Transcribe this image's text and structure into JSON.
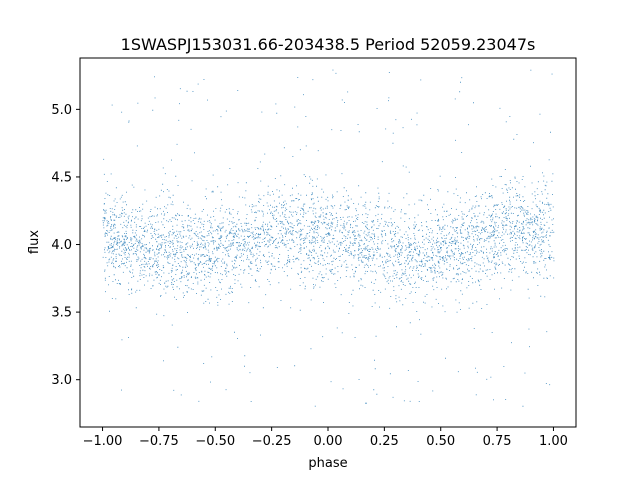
{
  "chart_data": {
    "type": "scatter",
    "title": "1SWASPJ153031.66-203438.5 Period 52059.23047s",
    "xlabel": "phase",
    "ylabel": "flux",
    "xlim": [
      -1.1,
      1.1
    ],
    "ylim": [
      2.65,
      5.38
    ],
    "xticks": [
      -1.0,
      -0.75,
      -0.5,
      -0.25,
      0.0,
      0.25,
      0.5,
      0.75,
      1.0
    ],
    "xtick_labels": [
      "−1.00",
      "−0.75",
      "−0.50",
      "−0.25",
      "0.00",
      "0.25",
      "0.50",
      "0.75",
      "1.00"
    ],
    "yticks": [
      3.0,
      3.5,
      4.0,
      4.5,
      5.0
    ],
    "ytick_labels": [
      "3.0",
      "3.5",
      "4.0",
      "4.5",
      "5.0"
    ],
    "grid": false,
    "marker_color": "#1f77b4",
    "series": [
      {
        "name": "",
        "x_range": [
          -1.0,
          1.0
        ],
        "flux_mean_profile": [
          {
            "phase": -1.0,
            "flux": 4.05
          },
          {
            "phase": -0.75,
            "flux": 3.98
          },
          {
            "phase": -0.55,
            "flux": 3.94
          },
          {
            "phase": -0.35,
            "flux": 4.02
          },
          {
            "phase": -0.2,
            "flux": 4.12
          },
          {
            "phase": 0.0,
            "flux": 4.05
          },
          {
            "phase": 0.25,
            "flux": 3.98
          },
          {
            "phase": 0.45,
            "flux": 3.94
          },
          {
            "phase": 0.65,
            "flux": 4.02
          },
          {
            "phase": 0.8,
            "flux": 4.12
          },
          {
            "phase": 1.0,
            "flux": 4.05
          }
        ],
        "typical_scatter": 0.17
      }
    ]
  }
}
